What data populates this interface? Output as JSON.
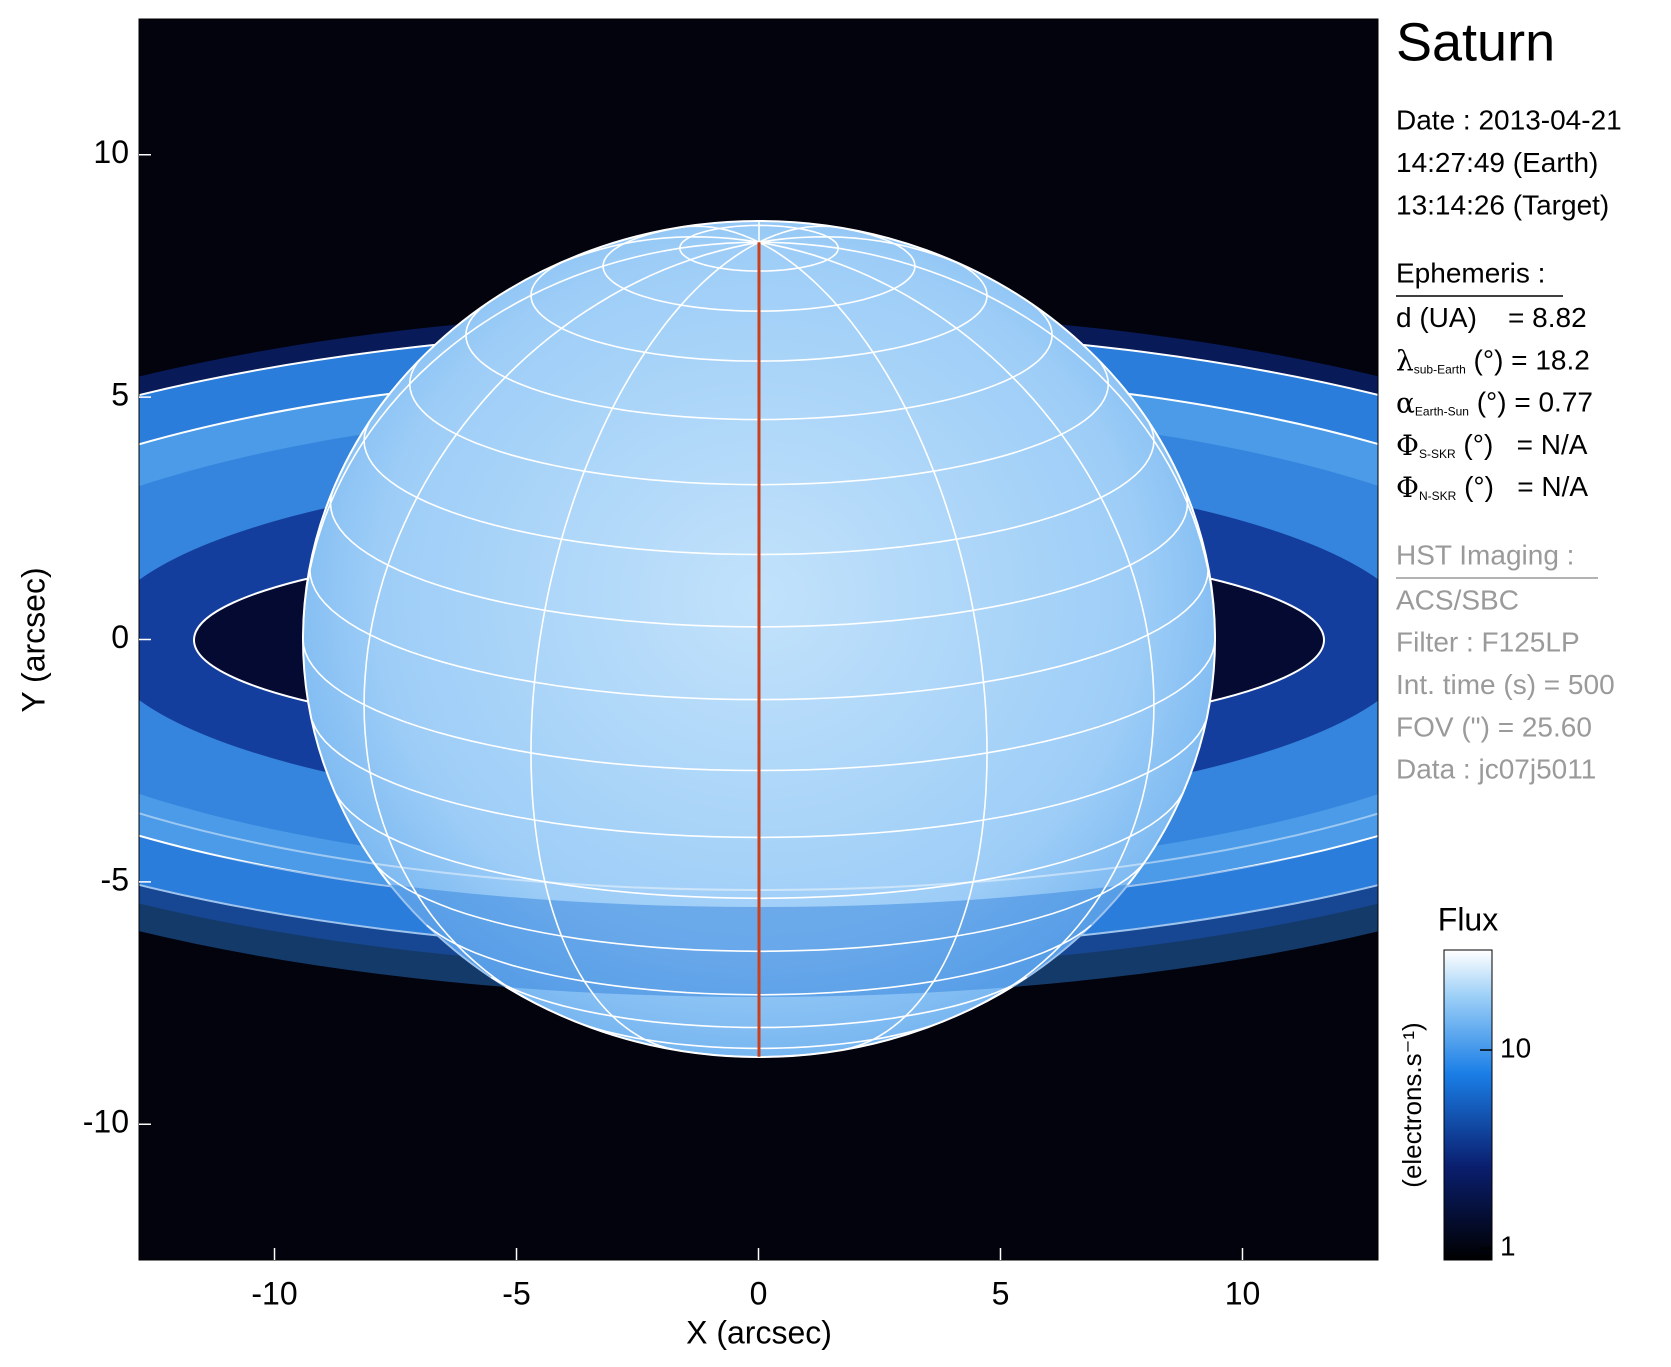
{
  "chart_data": {
    "type": "image",
    "xlabel": "X (arcsec)",
    "ylabel": "Y (arcsec)",
    "xlim": [
      -12.8,
      12.8
    ],
    "ylim": [
      -12.8,
      12.8
    ],
    "xticks": [
      -10,
      -5,
      0,
      5,
      10
    ],
    "yticks": [
      -10,
      -5,
      0,
      5,
      10
    ],
    "colorbar": {
      "title": "Flux",
      "label": "(electrons.s⁻¹)",
      "scale": "log",
      "lim": [
        0.87,
        32
      ],
      "ticks": [
        1,
        10
      ]
    }
  },
  "panel": {
    "title": "Saturn",
    "date_lines": [
      "Date : 2013-04-21",
      "14:27:49 (Earth)",
      "13:14:26 (Target)"
    ],
    "ephemeris": {
      "heading": "Ephemeris :",
      "rows": [
        {
          "text": "d (UA)    = 8.82"
        },
        {
          "symbol": "λ",
          "sub": "sub-Earth",
          "text": " (°) = 18.2"
        },
        {
          "symbol": "α",
          "sub": "Earth-Sun",
          "text": " (°) = 0.77"
        },
        {
          "symbol": "Φ",
          "sub": "S-SKR",
          "text": " (°)   = N/A"
        },
        {
          "symbol": "Φ",
          "sub": "N-SKR",
          "text": " (°)   = N/A"
        }
      ]
    },
    "imaging": {
      "heading": "HST Imaging :",
      "lines": [
        "ACS/SBC",
        "Filter : F125LP",
        "Int. time (s) = 500",
        "FOV (\") = 25.60",
        "Data : jc07j5011"
      ]
    }
  }
}
